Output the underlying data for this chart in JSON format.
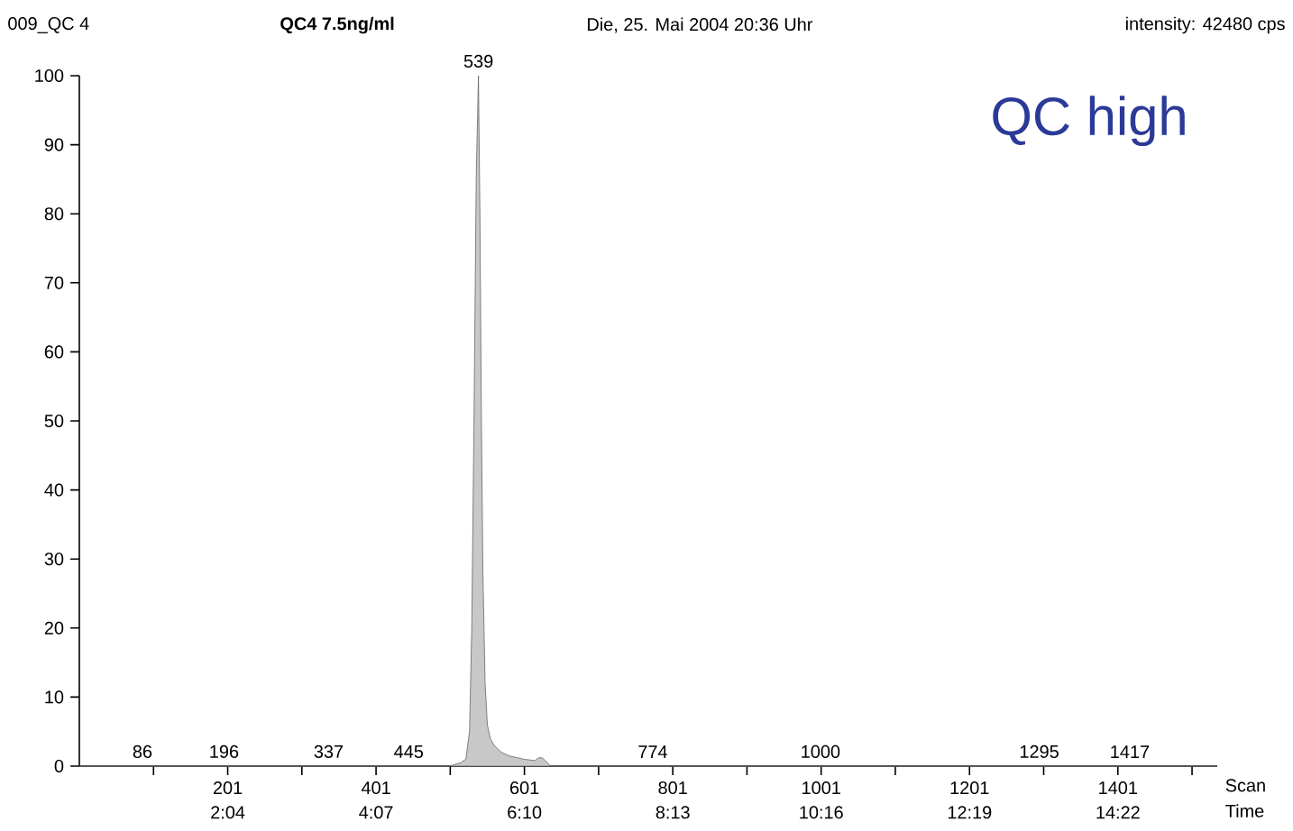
{
  "chart_data": {
    "type": "area",
    "title": "QC high",
    "xlabel": "Scan",
    "x2label": "Time",
    "annotations": [
      "009_QC  4",
      "**QC4  7.5ng/ml**",
      "Die, 25. Mai 2004 20:36 Uhr",
      "intensity: 42480 cps",
      {
        "text": "539",
        "x": 539,
        "y": 100
      },
      {
        "text": "86",
        "x": 86,
        "y": 0
      },
      {
        "text": "196",
        "x": 196,
        "y": 0
      },
      {
        "text": "337",
        "x": 337,
        "y": 0
      },
      {
        "text": "445",
        "x": 445,
        "y": 0
      },
      {
        "text": "774",
        "x": 774,
        "y": 0
      },
      {
        "text": "1000",
        "x": 1000,
        "y": 0
      },
      {
        "text": "1295",
        "x": 1295,
        "y": 0
      },
      {
        "text": "1417",
        "x": 1417,
        "y": 0
      }
    ],
    "series": [
      {
        "color": "#c8c8c8",
        "x": [
          1,
          500,
          515,
          522,
          527,
          530,
          533,
          536,
          539,
          541,
          543,
          545,
          548,
          551,
          555,
          560,
          570,
          580,
          600,
          615,
          620,
          625,
          632,
          636,
          1535
        ],
        "values": [
          0,
          0,
          0.5,
          1,
          5,
          20,
          50,
          85,
          100,
          80,
          50,
          28,
          12,
          6,
          4,
          3,
          2,
          1.5,
          1,
          0.8,
          1.2,
          1.2,
          0.5,
          0,
          0
        ]
      }
    ],
    "xlim": [
      1,
      1535
    ],
    "ylim": [
      0,
      100
    ],
    "xticks": [
      {
        "value": 101,
        "label": null
      },
      201,
      {
        "value": 301,
        "label": null
      },
      401,
      {
        "value": 501,
        "label": null
      },
      601,
      {
        "value": 701,
        "label": null
      },
      801,
      {
        "value": 901,
        "label": null
      },
      1001,
      {
        "value": 1101,
        "label": null
      },
      1201,
      {
        "value": 1301,
        "label": null
      },
      1401,
      {
        "value": 1501,
        "label": null
      }
    ],
    "x2lim": [
      0.0167,
      15.74
    ],
    "x2ticks": [
      {
        "value": 2.067,
        "label": "2:04"
      },
      {
        "value": 4.117,
        "label": "4:07"
      },
      {
        "value": 6.167,
        "label": "6:10"
      },
      {
        "value": 8.217,
        "label": "8:13"
      },
      {
        "value": 10.267,
        "label": "10:16"
      },
      {
        "value": 12.317,
        "label": "12:19"
      },
      {
        "value": 14.367,
        "label": "14:22"
      }
    ],
    "yticks": [
      0,
      10,
      20,
      30,
      40,
      50,
      60,
      70,
      80,
      90,
      100
    ],
    "grid": false
  }
}
